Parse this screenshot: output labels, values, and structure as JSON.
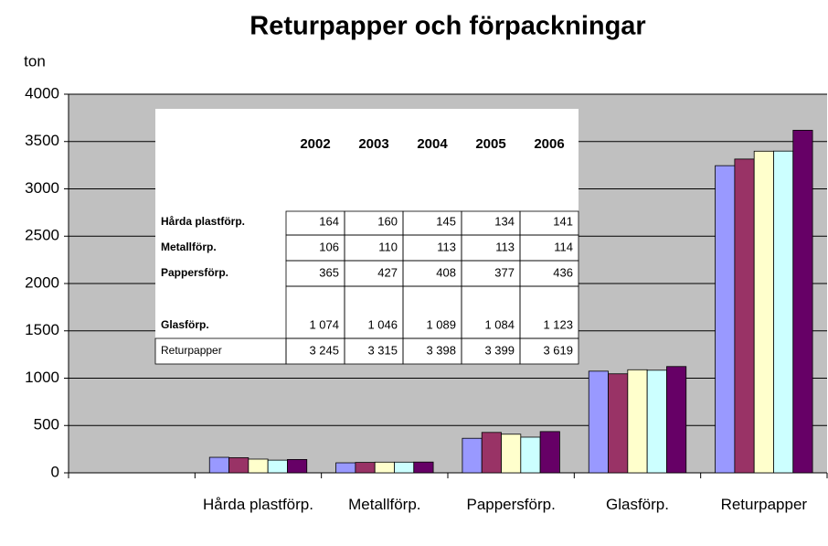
{
  "chart_data": {
    "type": "bar",
    "title": "Returpapper och förpackningar",
    "y_label": "ton",
    "categories": [
      null,
      "Hårda plastförp.",
      "Metallförp.",
      "Pappersförp.",
      "Glasförp.",
      "Returpapper"
    ],
    "series": [
      {
        "name": "2002",
        "color": "#9999ff",
        "values": [
          null,
          164,
          106,
          365,
          1074,
          3245
        ],
        "value_labels": [
          null,
          "164",
          "106",
          "365",
          "1 074",
          "3 245"
        ]
      },
      {
        "name": "2003",
        "color": "#993366",
        "values": [
          null,
          160,
          110,
          427,
          1046,
          3315
        ],
        "value_labels": [
          null,
          "160",
          "110",
          "427",
          "1 046",
          "3 315"
        ]
      },
      {
        "name": "2004",
        "color": "#ffffcc",
        "values": [
          null,
          145,
          113,
          408,
          1089,
          3398
        ],
        "value_labels": [
          null,
          "145",
          "113",
          "408",
          "1 089",
          "3 398"
        ]
      },
      {
        "name": "2005",
        "color": "#ccffff",
        "values": [
          null,
          134,
          113,
          377,
          1084,
          3399
        ],
        "value_labels": [
          null,
          "134",
          "113",
          "377",
          "1 084",
          "3 399"
        ]
      },
      {
        "name": "2006",
        "color": "#660066",
        "values": [
          null,
          141,
          114,
          436,
          1123,
          3619
        ],
        "value_labels": [
          null,
          "141",
          "114",
          "436",
          "1 123",
          "3 619"
        ]
      }
    ],
    "ylim": [
      0,
      4000
    ],
    "yticks": [
      0,
      500,
      1000,
      1500,
      2000,
      2500,
      3000,
      3500,
      4000
    ],
    "grid": true
  }
}
